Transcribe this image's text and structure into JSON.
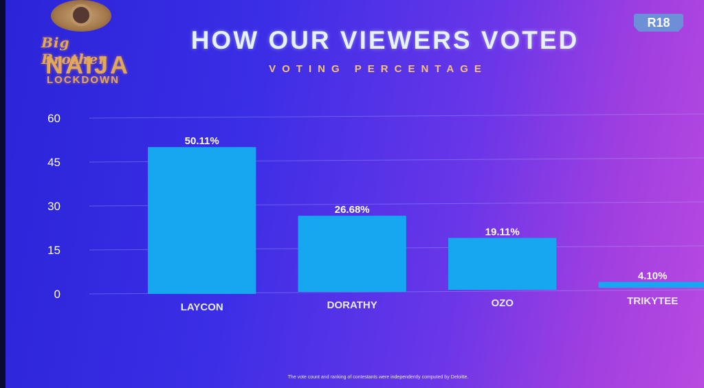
{
  "logo": {
    "line1": "Big Brother",
    "line2": "NAIJA",
    "line3": "LOCKDOWN"
  },
  "header": {
    "rating": "R18"
  },
  "footer": {
    "note": "The vote count and ranking of contestants were independently computed by Deloitte."
  },
  "colors": {
    "bar": "#17a6f0",
    "grid": "#aeb9ff"
  },
  "chart_data": {
    "type": "bar",
    "title": "HOW OUR VIEWERS VOTED",
    "subtitle": "VOTING PERCENTAGE",
    "categories": [
      "LAYCON",
      "DORATHY",
      "OZO",
      "TRIKYTEE"
    ],
    "values": [
      50.11,
      26.68,
      19.11,
      4.1
    ],
    "value_labels": [
      "50.11%",
      "26.68%",
      "19.11%",
      "4.10%"
    ],
    "ylim": [
      0,
      60
    ],
    "yticks": [
      0,
      15,
      30,
      45,
      60
    ],
    "grid": true,
    "xlabel": "",
    "ylabel": ""
  }
}
